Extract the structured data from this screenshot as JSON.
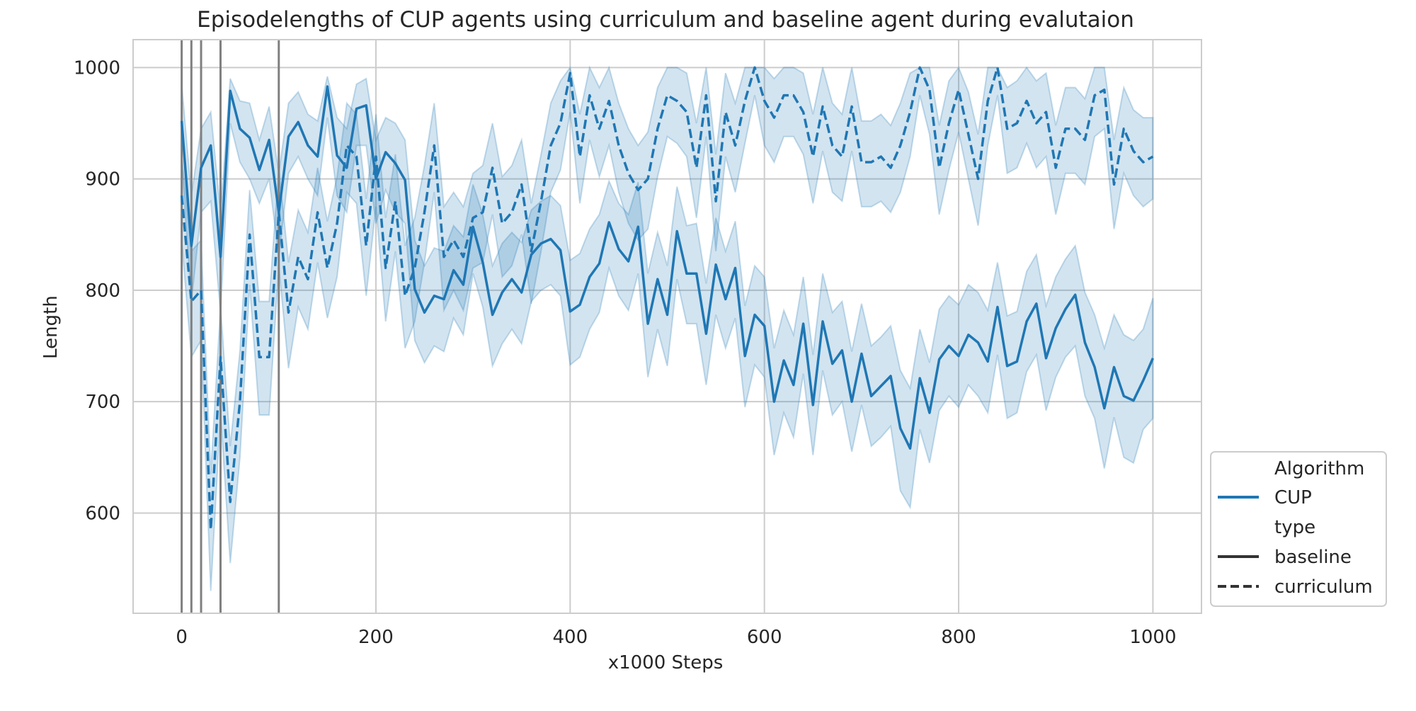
{
  "chart_data": {
    "type": "line",
    "title": "Episodelengths of CUP agents using curriculum and baseline agent during evalutaion",
    "xlabel": "x1000 Steps",
    "ylabel": "Length",
    "xlim": [
      -50,
      1050
    ],
    "ylim": [
      510,
      1025
    ],
    "x_ticks": [
      0,
      200,
      400,
      600,
      800,
      1000
    ],
    "y_ticks": [
      600,
      700,
      800,
      900,
      1000
    ],
    "grid": true,
    "vertical_lines": [
      0,
      10,
      20,
      40,
      100
    ],
    "legend_position": "bottom-right",
    "legend": {
      "hue_title": "Algorithm",
      "hue_entries": [
        {
          "label": "CUP",
          "color": "#1f77b4"
        }
      ],
      "style_title": "type",
      "style_entries": [
        {
          "label": "baseline",
          "dash": "solid"
        },
        {
          "label": "curriculum",
          "dash": "dashed"
        }
      ]
    },
    "colors": {
      "line": "#1f77b4",
      "band": "#1f77b4",
      "vline": "#808080",
      "grid": "#cccccc"
    },
    "x": [
      0,
      10,
      20,
      30,
      40,
      50,
      60,
      70,
      80,
      90,
      100,
      110,
      120,
      130,
      140,
      150,
      160,
      170,
      180,
      190,
      200,
      210,
      220,
      230,
      240,
      250,
      260,
      270,
      280,
      290,
      300,
      310,
      320,
      330,
      340,
      350,
      360,
      370,
      380,
      390,
      400,
      410,
      420,
      430,
      440,
      450,
      460,
      470,
      480,
      490,
      500,
      510,
      520,
      530,
      540,
      550,
      560,
      570,
      580,
      590,
      600,
      610,
      620,
      630,
      640,
      650,
      660,
      670,
      680,
      690,
      700,
      710,
      720,
      730,
      740,
      750,
      760,
      770,
      780,
      790,
      800,
      810,
      820,
      830,
      840,
      850,
      860,
      870,
      880,
      890,
      900,
      910,
      920,
      930,
      940,
      950,
      960,
      970,
      980,
      990,
      1000
    ],
    "series": [
      {
        "name": "baseline",
        "dash": "solid",
        "values": [
          952,
          840,
          910,
          930,
          830,
          979,
          945,
          937,
          908,
          935,
          870,
          938,
          951,
          930,
          920,
          983,
          921,
          910,
          963,
          966,
          900,
          924,
          914,
          899,
          801,
          780,
          795,
          792,
          818,
          805,
          857,
          825,
          778,
          798,
          810,
          798,
          832,
          842,
          846,
          836,
          781,
          787,
          812,
          824,
          861,
          837,
          826,
          857,
          770,
          810,
          778,
          853,
          815,
          815,
          761,
          823,
          792,
          820,
          741,
          778,
          768,
          700,
          737,
          715,
          770,
          697,
          772,
          734,
          746,
          700,
          743,
          705,
          714,
          723,
          676,
          658,
          721,
          690,
          738,
          750,
          741,
          760,
          753,
          736,
          785,
          732,
          736,
          772,
          788,
          739,
          766,
          783,
          796,
          753,
          731,
          694,
          731,
          705,
          701,
          719,
          739
        ],
        "lower": [
          915,
          790,
          870,
          880,
          780,
          950,
          915,
          900,
          878,
          900,
          830,
          905,
          920,
          900,
          885,
          955,
          885,
          870,
          930,
          930,
          860,
          890,
          870,
          860,
          755,
          735,
          750,
          745,
          775,
          760,
          815,
          785,
          732,
          752,
          765,
          752,
          790,
          800,
          805,
          795,
          733,
          740,
          765,
          780,
          820,
          795,
          782,
          815,
          722,
          765,
          732,
          810,
          770,
          770,
          715,
          778,
          748,
          775,
          695,
          733,
          722,
          652,
          690,
          668,
          725,
          652,
          728,
          688,
          700,
          655,
          697,
          660,
          668,
          678,
          620,
          605,
          675,
          645,
          692,
          705,
          695,
          715,
          705,
          690,
          742,
          685,
          690,
          727,
          742,
          692,
          722,
          740,
          750,
          705,
          685,
          640,
          686,
          650,
          645,
          675,
          685
        ],
        "upper": [
          985,
          885,
          945,
          960,
          870,
          990,
          970,
          968,
          935,
          965,
          905,
          968,
          978,
          958,
          952,
          992,
          955,
          945,
          985,
          990,
          935,
          955,
          950,
          935,
          845,
          822,
          838,
          835,
          858,
          848,
          895,
          868,
          822,
          842,
          852,
          843,
          872,
          880,
          885,
          876,
          827,
          833,
          855,
          868,
          898,
          878,
          868,
          897,
          815,
          852,
          822,
          893,
          858,
          860,
          806,
          865,
          835,
          862,
          786,
          822,
          812,
          748,
          782,
          760,
          812,
          742,
          815,
          780,
          790,
          745,
          788,
          750,
          758,
          768,
          728,
          712,
          765,
          735,
          783,
          795,
          787,
          805,
          798,
          782,
          825,
          777,
          781,
          817,
          832,
          786,
          812,
          828,
          840,
          798,
          778,
          748,
          778,
          760,
          755,
          765,
          793
        ]
      },
      {
        "name": "curriculum",
        "dash": "dashed",
        "values": [
          885,
          790,
          800,
          585,
          740,
          610,
          700,
          850,
          740,
          740,
          870,
          780,
          830,
          810,
          870,
          820,
          860,
          930,
          920,
          840,
          920,
          820,
          880,
          795,
          820,
          870,
          930,
          830,
          845,
          830,
          865,
          870,
          910,
          860,
          870,
          895,
          835,
          880,
          930,
          950,
          995,
          920,
          975,
          945,
          970,
          930,
          905,
          890,
          900,
          945,
          975,
          970,
          960,
          910,
          975,
          880,
          960,
          930,
          970,
          1000,
          970,
          955,
          975,
          975,
          960,
          920,
          965,
          930,
          920,
          965,
          915,
          915,
          920,
          910,
          930,
          960,
          1000,
          980,
          910,
          950,
          980,
          940,
          900,
          970,
          1000,
          945,
          950,
          970,
          950,
          960,
          910,
          945,
          945,
          935,
          975,
          980,
          895,
          945,
          925,
          915,
          920
        ],
        "lower": [
          845,
          740,
          755,
          530,
          690,
          555,
          650,
          805,
          688,
          688,
          822,
          730,
          785,
          765,
          825,
          775,
          812,
          888,
          878,
          795,
          875,
          772,
          835,
          748,
          772,
          825,
          888,
          782,
          800,
          782,
          820,
          825,
          868,
          812,
          822,
          850,
          788,
          835,
          888,
          908,
          960,
          878,
          935,
          902,
          930,
          888,
          860,
          845,
          855,
          902,
          938,
          932,
          920,
          865,
          938,
          835,
          920,
          888,
          932,
          975,
          930,
          915,
          938,
          938,
          922,
          878,
          925,
          888,
          880,
          925,
          875,
          875,
          880,
          870,
          888,
          920,
          975,
          940,
          868,
          908,
          942,
          900,
          858,
          930,
          975,
          905,
          910,
          932,
          910,
          920,
          868,
          905,
          905,
          895,
          938,
          945,
          855,
          905,
          885,
          875,
          882
        ],
        "upper": [
          920,
          835,
          845,
          635,
          785,
          660,
          745,
          890,
          790,
          790,
          910,
          825,
          872,
          852,
          910,
          862,
          902,
          968,
          958,
          882,
          958,
          865,
          922,
          840,
          865,
          912,
          968,
          875,
          888,
          875,
          905,
          912,
          950,
          902,
          912,
          935,
          878,
          922,
          968,
          988,
          1000,
          958,
          1000,
          982,
          1000,
          968,
          945,
          930,
          942,
          982,
          1000,
          1000,
          995,
          950,
          1000,
          922,
          995,
          968,
          1000,
          1000,
          1000,
          990,
          1000,
          1000,
          995,
          958,
          1000,
          968,
          958,
          1000,
          952,
          952,
          958,
          948,
          968,
          995,
          1000,
          1000,
          948,
          988,
          1000,
          978,
          940,
          1000,
          1000,
          982,
          988,
          1000,
          988,
          995,
          948,
          982,
          982,
          972,
          1000,
          1000,
          935,
          982,
          962,
          955,
          955
        ]
      }
    ]
  }
}
